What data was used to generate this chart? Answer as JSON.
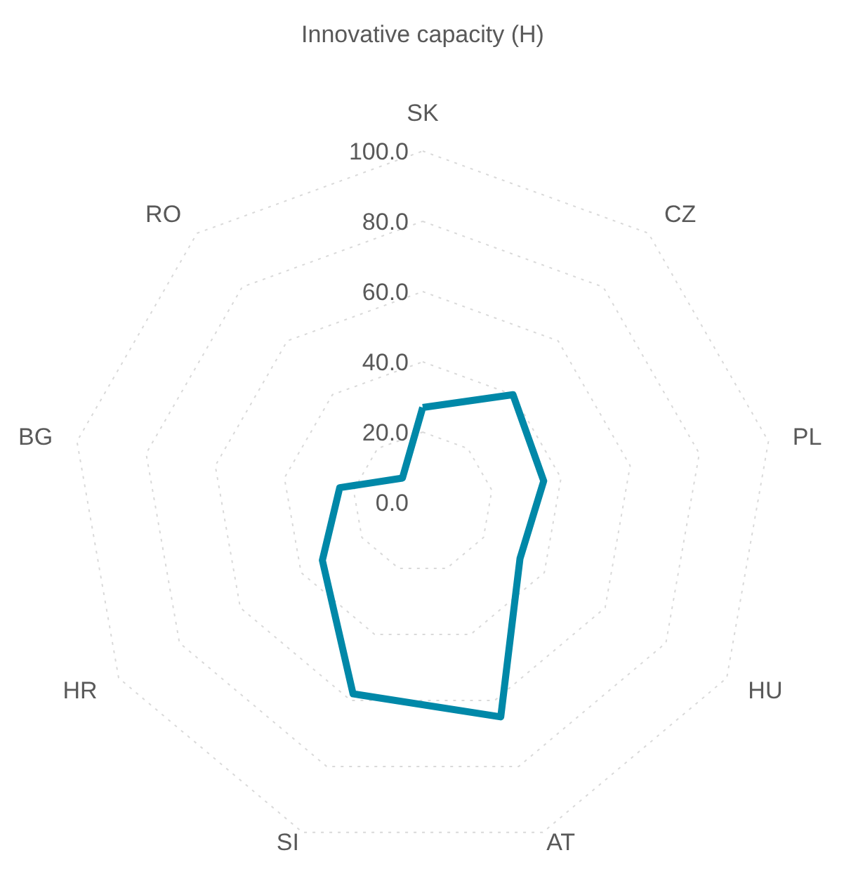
{
  "chart_data": {
    "type": "radar",
    "title": "Innovative capacity (H)",
    "categories": [
      "SK",
      "CZ",
      "PL",
      "HU",
      "AT",
      "SI",
      "HR",
      "BG",
      "RO"
    ],
    "series": [
      {
        "color": "#0088a8",
        "values": [
          27,
          40,
          35,
          32,
          65,
          58,
          33,
          24,
          9
        ]
      }
    ],
    "ylim": [
      0,
      100
    ],
    "yticks": [
      {
        "value": 0,
        "label": "0.0"
      },
      {
        "value": 20,
        "label": "20.0"
      },
      {
        "value": 40,
        "label": "40.0"
      },
      {
        "value": 60,
        "label": "60.0"
      },
      {
        "value": 80,
        "label": "80.0"
      },
      {
        "value": 100,
        "label": "100.0"
      }
    ],
    "grid": true
  }
}
